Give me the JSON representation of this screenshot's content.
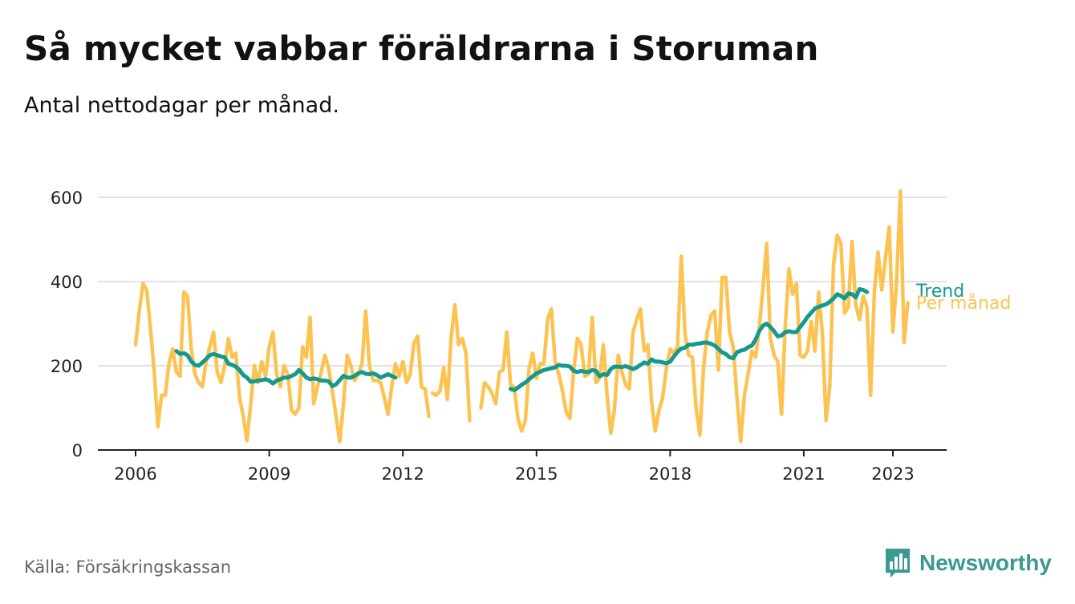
{
  "title": "Så mycket vabbar föräldrarna i Storuman",
  "subtitle": "Antal nettodagar per månad.",
  "source": "Källa: Försäkringskassan",
  "brand": {
    "name": "Newsworthy",
    "logo_icon": "bar-chart-speech-bubble-icon"
  },
  "colors": {
    "monthly": "#FDC352",
    "trend": "#15998E",
    "grid": "#d9d9d9",
    "axis": "#222222"
  },
  "chart_data": {
    "type": "line",
    "title": "Så mycket vabbar föräldrarna i Storuman",
    "subtitle": "Antal nettodagar per månad.",
    "xlabel": "",
    "ylabel": "",
    "ylim": [
      0,
      620
    ],
    "xlim": [
      2005.4,
      2024.2
    ],
    "yticks": [
      0,
      200,
      400,
      600
    ],
    "ytick_labels": [
      "0",
      "200",
      "400",
      "600"
    ],
    "xticks": [
      2006,
      2009,
      2012,
      2015,
      2018,
      2021,
      2023
    ],
    "xtick_labels": [
      "2006",
      "2009",
      "2012",
      "2015",
      "2018",
      "2021",
      "2023"
    ],
    "grid": true,
    "legend": "direct labels at right end of lines",
    "series": [
      {
        "name": "Per månad",
        "color": "#FDC352",
        "segments": [
          {
            "start": "2006-01",
            "values": [
              250,
              330,
              395,
              380,
              290,
              190,
              55,
              130,
              130,
              205,
              240,
              185,
              175,
              375,
              365,
              240,
              180,
              160,
              150,
              210,
              245,
              280,
              185,
              160,
              200,
              265,
              220,
              230,
              125,
              80,
              22,
              110,
              200,
              160,
              210,
              175,
              245,
              280,
              180,
              150,
              200,
              180,
              95,
              85,
              100,
              245,
              220,
              315,
              110,
              150,
              185,
              225,
              195,
              140,
              80,
              20,
              110,
              225,
              200,
              165,
              180,
              205,
              330,
              200,
              165,
              165,
              160,
              125,
              85,
              150,
              205,
              175,
              210,
              160,
              180,
              255,
              270,
              150,
              145,
              80
            ]
          },
          {
            "start": "2012-09",
            "values": [
              135,
              130,
              140,
              195,
              120,
              265,
              345,
              250,
              265,
              230,
              70
            ]
          },
          {
            "start": "2013-10",
            "values": [
              100,
              160,
              150,
              135,
              110,
              185,
              190,
              280,
              155,
              150,
              75,
              45,
              70,
              195,
              230,
              170,
              205,
              205,
              310,
              335,
              210,
              180,
              140,
              90,
              75,
              185,
              265,
              250,
              175,
              180,
              315,
              160,
              170,
              250,
              130,
              40,
              95,
              225,
              185,
              155,
              145,
              280,
              310,
              335,
              235,
              250,
              115,
              45,
              95,
              125,
              195,
              240,
              230,
              245,
              460,
              275,
              225,
              220,
              100,
              35,
              195,
              280,
              320,
              330,
              190,
              410,
              410,
              280,
              245,
              125,
              20,
              130,
              180,
              235,
              220,
              290,
              385,
              490,
              265,
              225,
              210,
              85,
              295,
              430,
              370,
              395,
              225,
              220,
              235,
              305,
              235,
              375,
              275,
              70,
              150,
              440,
              510,
              490,
              325,
              340,
              495,
              345,
              310,
              365,
              340,
              130,
              375,
              470,
              380,
              455,
              530,
              280,
              400,
              615,
              255,
              350
            ]
          }
        ]
      },
      {
        "name": "Trend",
        "color": "#15998E",
        "segments": [
          {
            "start": "2006-12",
            "values": [
              235,
              228,
              230,
              225,
              210,
              202,
              200,
              208,
              216,
              225,
              228,
              225,
              222,
              220,
              205,
              202,
              198,
              190,
              178,
              172,
              162,
              163,
              165,
              166,
              168,
              165,
              158,
              165,
              168,
              172,
              172,
              176,
              180,
              190,
              182,
              172,
              168,
              170,
              168,
              165,
              165,
              163,
              152,
              156,
              166,
              176,
              172,
              172,
              176,
              182,
              185,
              181,
              180,
              182,
              178,
              172,
              176,
              180,
              176,
              172
            ]
          },
          {
            "start": "2014-06",
            "values": [
              145,
              142,
              148,
              155,
              160,
              168,
              175,
              182,
              186,
              190,
              192,
              194,
              196,
              202,
              200,
              200,
              198,
              188,
              185,
              188,
              186,
              185,
              190,
              188,
              175,
              180,
              178,
              192,
              198,
              198,
              197,
              199,
              196,
              192,
              196,
              202,
              208,
              205,
              215,
              210,
              210,
              208,
              206,
              210,
              222,
              233,
              241,
              243,
              250,
              250,
              252,
              253,
              255,
              255,
              252,
              248,
              240,
              232,
              228,
              220,
              218,
              232,
              236,
              238,
              244,
              248,
              262,
              282,
              295,
              300,
              292,
              282,
              270,
              272,
              280,
              282,
              280,
              280,
              292,
              303,
              316,
              326,
              336,
              340,
              343,
              346,
              352,
              360,
              370,
              366,
              360,
              372,
              370,
              362,
              382,
              380,
              375
            ]
          }
        ]
      }
    ]
  }
}
